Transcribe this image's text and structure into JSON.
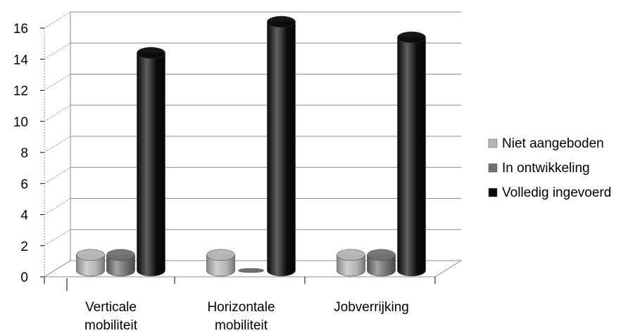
{
  "chart_data": {
    "type": "bar",
    "style": "3d-cylinder",
    "categories": [
      "Verticale mobiliteit",
      "Horizontale mobiliteit",
      "Jobverrijking"
    ],
    "category_lines": [
      [
        "Verticale",
        "mobiliteit"
      ],
      [
        "Horizontale",
        "mobiliteit"
      ],
      [
        "Jobverrijking"
      ]
    ],
    "series": [
      {
        "name": "Niet aangeboden",
        "color": "#b5b5b5",
        "values": [
          1,
          1,
          1
        ]
      },
      {
        "name": "In ontwikkeling",
        "color": "#707070",
        "values": [
          1,
          0,
          1
        ]
      },
      {
        "name": "Volledig ingevoerd",
        "color": "#0a0a0a",
        "values": [
          14,
          16,
          15
        ]
      }
    ],
    "ylim": [
      0,
      16
    ],
    "yticks": [
      0,
      2,
      4,
      6,
      8,
      10,
      12,
      14,
      16
    ],
    "grid": true,
    "legend_position": "right"
  }
}
